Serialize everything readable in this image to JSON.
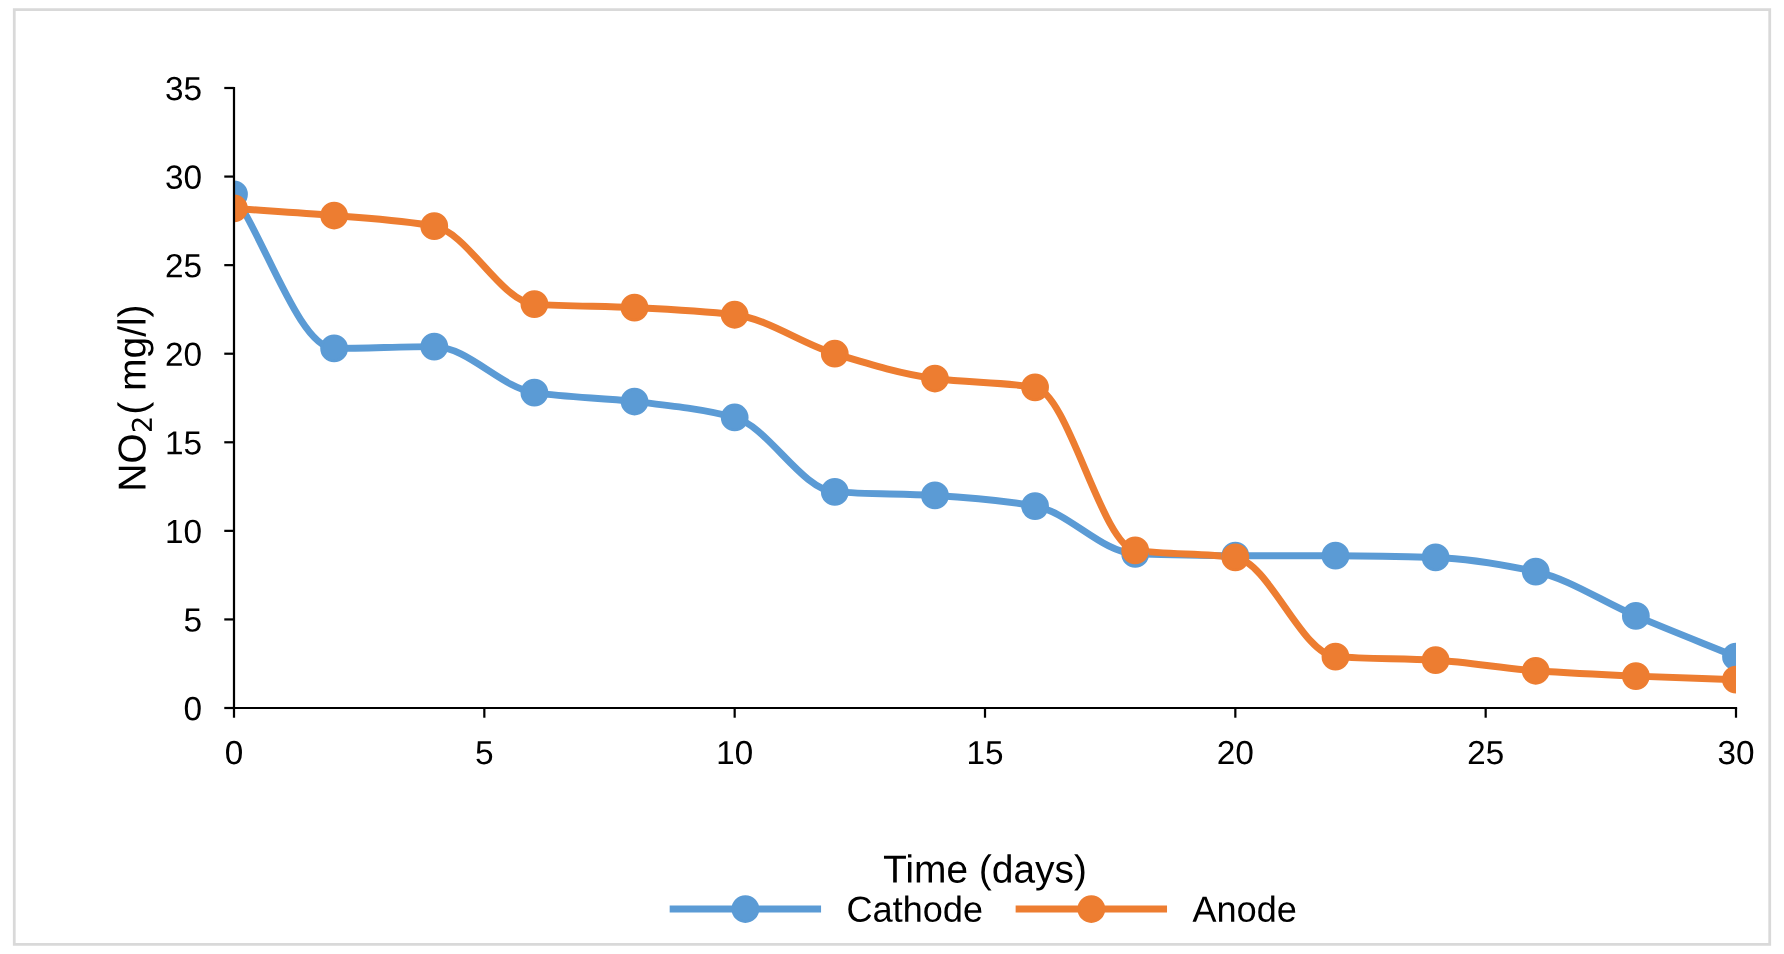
{
  "chart_data": {
    "type": "line",
    "xlabel": "Time (days)",
    "ylabel": "NO$_{2}$( mg/l)",
    "x": [
      0,
      2,
      4,
      6,
      8,
      10,
      12,
      14,
      16,
      18,
      20,
      22,
      24,
      26,
      28,
      30
    ],
    "series": [
      {
        "name": "Cathode",
        "color": "#5b9bd5",
        "values": [
          29.0,
          20.3,
          20.4,
          17.8,
          17.3,
          16.4,
          12.2,
          12.0,
          11.4,
          8.7,
          8.6,
          8.6,
          8.5,
          7.7,
          5.2,
          2.9
        ]
      },
      {
        "name": "Anode",
        "color": "#ed7d31",
        "values": [
          28.2,
          27.8,
          27.2,
          22.8,
          22.6,
          22.2,
          20.0,
          18.6,
          18.1,
          8.9,
          8.5,
          2.9,
          2.7,
          2.1,
          1.8,
          1.6
        ]
      }
    ],
    "xlim": [
      0,
      30
    ],
    "xticks": [
      0,
      5,
      10,
      15,
      20,
      25,
      30
    ],
    "ylim": [
      0,
      35
    ],
    "yticks": [
      0,
      5,
      10,
      15,
      20,
      25,
      30,
      35
    ],
    "grid": false,
    "legend": "bottom",
    "marker": "circle",
    "line_style": "solid"
  }
}
